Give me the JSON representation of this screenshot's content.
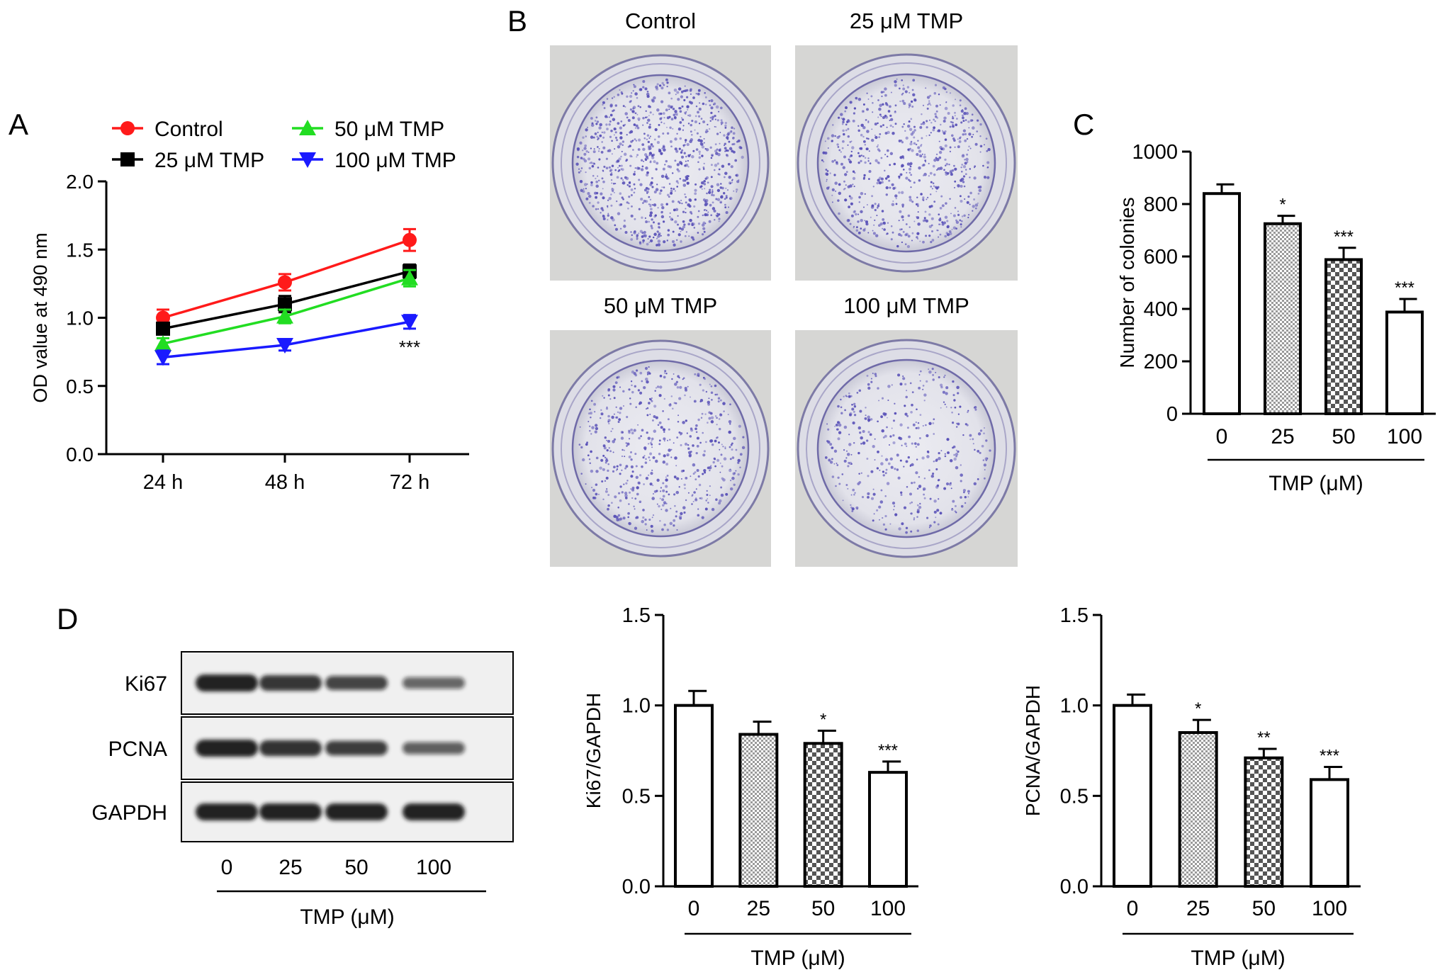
{
  "panel_labels": {
    "a": "A",
    "b": "B",
    "c": "C",
    "d": "D"
  },
  "colors": {
    "control": "#ff1a1a",
    "tmp25": "#000000",
    "tmp50": "#22dd22",
    "tmp100": "#1a1aff",
    "plate_bg": "#d6d6d4",
    "plate_dish": "#e6e6ec",
    "colony": "#5a52b8",
    "band": "#141414",
    "blot_bg": "#f0f0f0"
  },
  "chart_data": [
    {
      "id": "A",
      "type": "line",
      "categories": [
        "24 h",
        "48 h",
        "72 h"
      ],
      "ylabel": "OD value at 490 nm",
      "xlabel": "",
      "ylim": [
        0,
        2.0
      ],
      "yticks": [
        "0.0",
        "0.5",
        "1.0",
        "1.5",
        "2.0"
      ],
      "series": [
        {
          "name": "Control",
          "values": [
            1.0,
            1.26,
            1.57
          ],
          "errors": [
            0.06,
            0.06,
            0.08
          ],
          "marker": "circle",
          "colorKey": "control"
        },
        {
          "name": "25 μM TMP",
          "values": [
            0.92,
            1.1,
            1.34
          ],
          "errors": [
            0.04,
            0.06,
            0.05
          ],
          "marker": "square",
          "colorKey": "tmp25"
        },
        {
          "name": "50 μM TMP",
          "values": [
            0.81,
            1.01,
            1.29
          ],
          "errors": [
            0.04,
            0.05,
            0.06
          ],
          "marker": "triangle-up",
          "colorKey": "tmp50"
        },
        {
          "name": "100 μM TMP",
          "values": [
            0.71,
            0.8,
            0.97
          ],
          "errors": [
            0.05,
            0.04,
            0.05
          ],
          "marker": "triangle-down",
          "colorKey": "tmp100"
        }
      ],
      "annotations": [
        {
          "text": "***",
          "category": "72 h",
          "y": 0.8
        }
      ]
    },
    {
      "id": "C",
      "type": "bar",
      "categories": [
        "0",
        "25",
        "50",
        "100"
      ],
      "values": [
        840,
        725,
        588,
        388
      ],
      "errors": [
        35,
        30,
        45,
        50
      ],
      "significance": [
        "",
        "*",
        "***",
        "***"
      ],
      "patterns": [
        "open",
        "fine-checker",
        "coarse-checker",
        "open"
      ],
      "ylabel": "Number of colonies",
      "xlabel": "TMP (μM)",
      "ylim": [
        0,
        1000
      ],
      "yticks": [
        "0",
        "200",
        "400",
        "600",
        "800",
        "1000"
      ]
    },
    {
      "id": "D-Ki67",
      "type": "bar",
      "categories": [
        "0",
        "25",
        "50",
        "100"
      ],
      "values": [
        1.0,
        0.84,
        0.79,
        0.63
      ],
      "errors": [
        0.08,
        0.07,
        0.07,
        0.06
      ],
      "significance": [
        "",
        "",
        "*",
        "***"
      ],
      "patterns": [
        "open",
        "fine-checker",
        "coarse-checker",
        "open"
      ],
      "ylabel": "Ki67/GAPDH",
      "xlabel": "TMP (μM)",
      "ylim": [
        0,
        1.5
      ],
      "yticks": [
        "0.0",
        "0.5",
        "1.0",
        "1.5"
      ]
    },
    {
      "id": "D-PCNA",
      "type": "bar",
      "categories": [
        "0",
        "25",
        "50",
        "100"
      ],
      "values": [
        1.0,
        0.85,
        0.71,
        0.59
      ],
      "errors": [
        0.06,
        0.07,
        0.05,
        0.07
      ],
      "significance": [
        "",
        "*",
        "**",
        "***"
      ],
      "patterns": [
        "open",
        "fine-checker",
        "coarse-checker",
        "open"
      ],
      "ylabel": "PCNA/GAPDH",
      "xlabel": "TMP (μM)",
      "ylim": [
        0,
        1.5
      ],
      "yticks": [
        "0.0",
        "0.5",
        "1.0",
        "1.5"
      ]
    }
  ],
  "plates": {
    "labels": [
      "Control",
      "25 μM TMP",
      "50 μM TMP",
      "100 μM TMP"
    ],
    "colony_density": [
      1.0,
      0.78,
      0.62,
      0.45
    ]
  },
  "western_blot": {
    "rows": [
      "Ki67",
      "PCNA",
      "GAPDH"
    ],
    "lanes": [
      "0",
      "25",
      "50",
      "100"
    ],
    "xlabel": "TMP (μM)",
    "band_intensity": [
      [
        1.0,
        0.85,
        0.7,
        0.45
      ],
      [
        1.0,
        0.88,
        0.75,
        0.5
      ],
      [
        1.0,
        1.0,
        1.0,
        1.0
      ]
    ]
  }
}
